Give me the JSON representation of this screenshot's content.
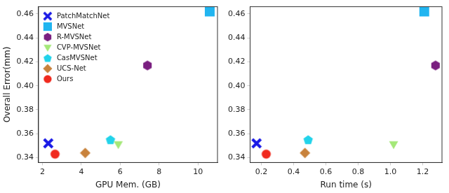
{
  "chart_data": [
    {
      "type": "scatter",
      "x_label": "GPU Mem. (GB)",
      "y_label": "Overall Error(mm)",
      "xlim": [
        1.8,
        11
      ],
      "xticks": [
        2,
        4,
        6,
        8,
        10
      ],
      "ylim": [
        0.336,
        0.466
      ],
      "yticks": [
        0.34,
        0.36,
        0.38,
        {
          "value": 0.4,
          "label": "0.40"
        },
        0.42,
        0.44,
        0.46
      ],
      "grid": false,
      "legend": "upper left",
      "series": [
        {
          "name": "PatchMatchNet",
          "color": "#1a1ae6",
          "marker": "x",
          "x": [
            2.3
          ],
          "values": [
            0.352
          ]
        },
        {
          "name": "MVSNet",
          "color": "#21b5f0",
          "marker": "square",
          "x": [
            10.6
          ],
          "values": [
            0.462
          ]
        },
        {
          "name": "R-MVSNet",
          "color": "#7a1f80",
          "marker": "hexagon",
          "x": [
            7.4
          ],
          "values": [
            0.417
          ]
        },
        {
          "name": "CVP-MVSNet",
          "color": "#a4e878",
          "marker": "triangle_down",
          "x": [
            5.9
          ],
          "values": [
            0.351
          ]
        },
        {
          "name": "CasMVSNet",
          "color": "#22d3ea",
          "marker": "pentagon",
          "x": [
            5.5
          ],
          "values": [
            0.355
          ]
        },
        {
          "name": "UCS-Net",
          "color": "#c8823c",
          "marker": "diamond",
          "x": [
            4.2
          ],
          "values": [
            0.344
          ]
        },
        {
          "name": "Ours",
          "color": "#f02a1e",
          "marker": "circle",
          "x": [
            2.65
          ],
          "values": [
            0.343
          ]
        }
      ]
    },
    {
      "type": "scatter",
      "x_label": "Run time (s)",
      "xlim": [
        0.13,
        1.32
      ],
      "xticks": [
        0.2,
        0.4,
        0.6,
        0.8,
        {
          "value": 1,
          "label": "1.0"
        },
        1.2
      ],
      "ylim": [
        0.336,
        0.466
      ],
      "yticks": [
        0.34,
        0.36,
        0.38,
        {
          "value": 0.4,
          "label": "0.40"
        },
        0.42,
        0.44,
        0.46
      ],
      "grid": false,
      "series": [
        {
          "color": "#1a1ae6",
          "marker": "x",
          "x": [
            0.17
          ],
          "values": [
            0.352
          ]
        },
        {
          "color": "#21b5f0",
          "marker": "square",
          "x": [
            1.21
          ],
          "values": [
            0.462
          ]
        },
        {
          "color": "#7a1f80",
          "marker": "hexagon",
          "x": [
            1.28
          ],
          "values": [
            0.417
          ]
        },
        {
          "color": "#a4e878",
          "marker": "triangle_down",
          "x": [
            1.02
          ],
          "values": [
            0.351
          ]
        },
        {
          "color": "#22d3ea",
          "marker": "pentagon",
          "x": [
            0.49
          ],
          "values": [
            0.355
          ]
        },
        {
          "color": "#c8823c",
          "marker": "diamond",
          "x": [
            0.47
          ],
          "values": [
            0.344
          ]
        },
        {
          "color": "#f02a1e",
          "marker": "circle",
          "x": [
            0.23
          ],
          "values": [
            0.343
          ]
        }
      ]
    }
  ]
}
